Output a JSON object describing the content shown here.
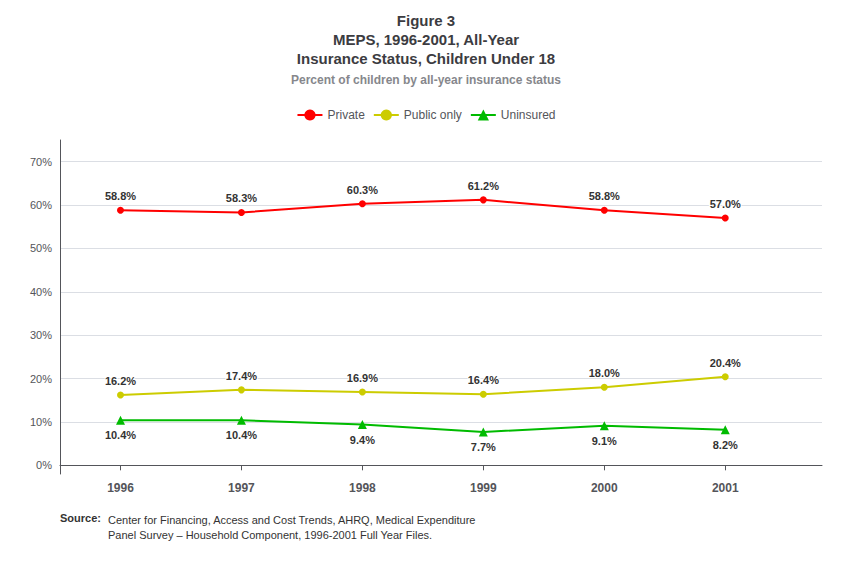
{
  "chart_data": {
    "type": "line",
    "title": "Figure 3\nMEPS, 1996-2001, All-Year\nInsurance Status, Children Under 18",
    "subtitle": "Percent of children by all-year insurance status",
    "annotations": [
      "Source:",
      "Center for Financing, Access and Cost Trends, AHRQ, Medical Expenditure\nPanel Survey – Household Component, 1996-2001 Full Year Files."
    ],
    "x": [
      1996,
      1997,
      1998,
      1999,
      2000,
      2001
    ],
    "xlim": [
      1995.5,
      2001.8
    ],
    "xticks": [
      1996,
      1997,
      1998,
      1999,
      2000,
      2001
    ],
    "ylim": [
      -2,
      75
    ],
    "yticks": [
      {
        "value": 0,
        "label": "0%"
      },
      {
        "value": 10,
        "label": "10%"
      },
      {
        "value": 20,
        "label": "20%"
      },
      {
        "value": 30,
        "label": "30%"
      },
      {
        "value": 40,
        "label": "40%"
      },
      {
        "value": 50,
        "label": "50%"
      },
      {
        "value": 60,
        "label": "60%"
      },
      {
        "value": 70,
        "label": "70%"
      }
    ],
    "grid": true,
    "legend": "top",
    "data_labels": true,
    "series": [
      {
        "name": "Private",
        "color": "#ff0000",
        "marker": "circle",
        "values": [
          58.8,
          58.3,
          60.3,
          61.2,
          58.8,
          57.0
        ],
        "value_labels": [
          "58.8%",
          "58.3%",
          "60.3%",
          "61.2%",
          "58.8%",
          "57.0%"
        ]
      },
      {
        "name": "Public only",
        "color": "#cccc00",
        "marker": "circle",
        "values": [
          16.2,
          17.4,
          16.9,
          16.4,
          18.0,
          20.4
        ],
        "value_labels": [
          "16.2%",
          "17.4%",
          "16.9%",
          "16.4%",
          "18.0%",
          "20.4%"
        ]
      },
      {
        "name": "Uninsured",
        "color": "#00bb00",
        "marker": "triangle",
        "values": [
          10.4,
          10.4,
          9.4,
          7.7,
          9.1,
          8.2
        ],
        "value_labels": [
          "10.4%",
          "10.4%",
          "9.4%",
          "7.7%",
          "9.1%",
          "8.2%"
        ]
      }
    ]
  }
}
